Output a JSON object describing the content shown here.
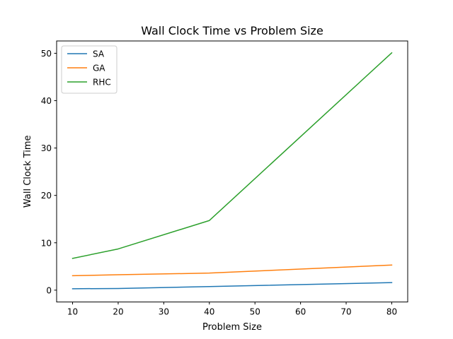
{
  "chart_data": {
    "type": "line",
    "title": "Wall Clock Time vs Problem Size",
    "xlabel": "Problem Size",
    "ylabel": "Wall Clock Time",
    "xlim": [
      6.5,
      83.5
    ],
    "ylim": [
      -2.5,
      52.6
    ],
    "xticks": [
      10,
      20,
      30,
      40,
      50,
      60,
      70,
      80
    ],
    "yticks": [
      0,
      10,
      20,
      30,
      40,
      50
    ],
    "grid": false,
    "legend_position": "top-left",
    "x": [
      10,
      20,
      40,
      80
    ],
    "series": [
      {
        "name": "SA",
        "color": "#1f77b4",
        "values": [
          0.3,
          0.35,
          0.75,
          1.6
        ]
      },
      {
        "name": "GA",
        "color": "#ff7f0e",
        "values": [
          3.05,
          3.25,
          3.6,
          5.3
        ]
      },
      {
        "name": "RHC",
        "color": "#2ca02c",
        "values": [
          6.7,
          8.7,
          14.7,
          50.1
        ]
      }
    ]
  }
}
